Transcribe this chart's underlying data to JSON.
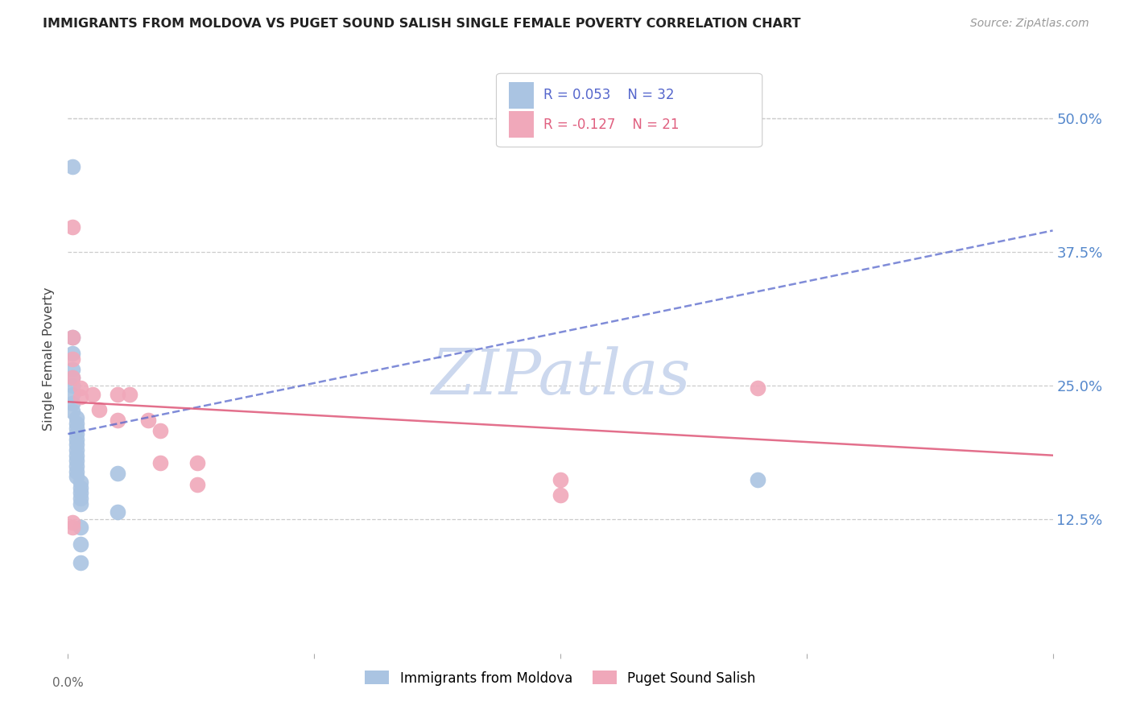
{
  "title": "IMMIGRANTS FROM MOLDOVA VS PUGET SOUND SALISH SINGLE FEMALE POVERTY CORRELATION CHART",
  "source": "Source: ZipAtlas.com",
  "ylabel": "Single Female Poverty",
  "ytick_labels": [
    "50.0%",
    "37.5%",
    "25.0%",
    "12.5%"
  ],
  "ytick_values": [
    0.5,
    0.375,
    0.25,
    0.125
  ],
  "xlim": [
    0.0,
    0.8
  ],
  "ylim": [
    0.0,
    0.55
  ],
  "legend_blue_r": "0.053",
  "legend_blue_n": "32",
  "legend_pink_r": "-0.127",
  "legend_pink_n": "21",
  "blue_color": "#aac4e2",
  "pink_color": "#f0a8ba",
  "blue_line_color": "#5566cc",
  "pink_line_color": "#e06080",
  "blue_line": [
    [
      0.0,
      0.205
    ],
    [
      0.8,
      0.395
    ]
  ],
  "pink_line": [
    [
      0.0,
      0.235
    ],
    [
      0.8,
      0.185
    ]
  ],
  "blue_scatter": [
    [
      0.004,
      0.455
    ],
    [
      0.004,
      0.295
    ],
    [
      0.004,
      0.28
    ],
    [
      0.004,
      0.265
    ],
    [
      0.004,
      0.258
    ],
    [
      0.004,
      0.25
    ],
    [
      0.004,
      0.242
    ],
    [
      0.004,
      0.234
    ],
    [
      0.004,
      0.226
    ],
    [
      0.007,
      0.22
    ],
    [
      0.007,
      0.215
    ],
    [
      0.007,
      0.21
    ],
    [
      0.007,
      0.205
    ],
    [
      0.007,
      0.2
    ],
    [
      0.007,
      0.195
    ],
    [
      0.007,
      0.19
    ],
    [
      0.007,
      0.185
    ],
    [
      0.007,
      0.18
    ],
    [
      0.007,
      0.175
    ],
    [
      0.007,
      0.17
    ],
    [
      0.007,
      0.165
    ],
    [
      0.01,
      0.16
    ],
    [
      0.01,
      0.155
    ],
    [
      0.01,
      0.15
    ],
    [
      0.01,
      0.145
    ],
    [
      0.01,
      0.14
    ],
    [
      0.04,
      0.168
    ],
    [
      0.04,
      0.132
    ],
    [
      0.01,
      0.118
    ],
    [
      0.01,
      0.102
    ],
    [
      0.01,
      0.085
    ],
    [
      0.56,
      0.162
    ]
  ],
  "pink_scatter": [
    [
      0.004,
      0.398
    ],
    [
      0.004,
      0.295
    ],
    [
      0.004,
      0.275
    ],
    [
      0.004,
      0.258
    ],
    [
      0.01,
      0.248
    ],
    [
      0.01,
      0.24
    ],
    [
      0.02,
      0.242
    ],
    [
      0.025,
      0.228
    ],
    [
      0.04,
      0.242
    ],
    [
      0.04,
      0.218
    ],
    [
      0.05,
      0.242
    ],
    [
      0.065,
      0.218
    ],
    [
      0.075,
      0.208
    ],
    [
      0.075,
      0.178
    ],
    [
      0.105,
      0.178
    ],
    [
      0.105,
      0.158
    ],
    [
      0.004,
      0.122
    ],
    [
      0.56,
      0.248
    ],
    [
      0.4,
      0.162
    ],
    [
      0.004,
      0.118
    ],
    [
      0.4,
      0.148
    ]
  ],
  "watermark": "ZIPatlas",
  "watermark_color": "#ccd8ee",
  "background_color": "#ffffff",
  "grid_color": "#cccccc"
}
